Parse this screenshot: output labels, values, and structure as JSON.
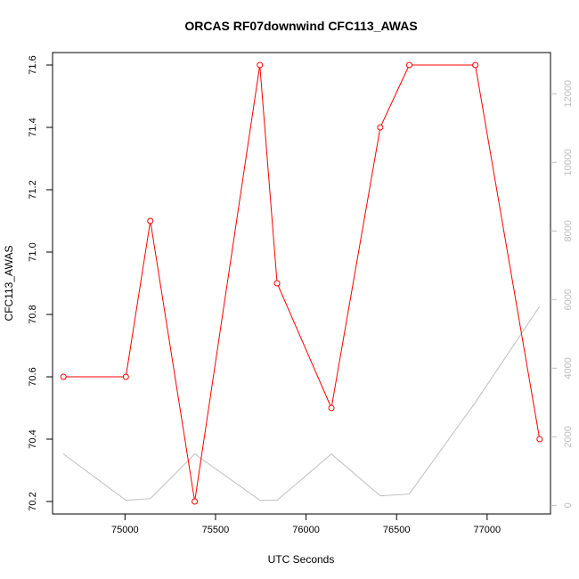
{
  "chart_data": {
    "type": "line",
    "title": "ORCAS RF07downwind CFC113_AWAS",
    "xlabel": "UTC Seconds",
    "ylabel": "CFC113_AWAS",
    "xlim": [
      74600,
      77350
    ],
    "ylim": [
      70.16,
      71.64
    ],
    "y2lim": [
      -250,
      13200
    ],
    "x_ticks": [
      75000,
      75500,
      76000,
      76500,
      77000
    ],
    "y_ticks": [
      70.2,
      70.4,
      70.6,
      70.8,
      71.0,
      71.2,
      71.4,
      71.6
    ],
    "y2_ticks": [
      0,
      2000,
      4000,
      6000,
      8000,
      10000,
      12000
    ],
    "grid": false,
    "series": [
      {
        "axis": "left",
        "color": "#ff0000",
        "markers": "open-circle",
        "x": [
          74660,
          75005,
          75140,
          75385,
          75745,
          75840,
          76140,
          76410,
          76570,
          76935,
          77290
        ],
        "y": [
          70.6,
          70.6,
          71.1,
          70.2,
          71.6,
          70.9,
          70.5,
          71.4,
          71.6,
          71.6,
          70.4
        ]
      },
      {
        "axis": "right",
        "color": "#bebebe",
        "markers": "none",
        "x": [
          74660,
          75005,
          75140,
          75385,
          75745,
          75840,
          76140,
          76410,
          76570,
          76935,
          77290
        ],
        "y": [
          1500,
          150,
          200,
          1500,
          150,
          150,
          1500,
          280,
          330,
          3000,
          5800
        ]
      }
    ]
  }
}
